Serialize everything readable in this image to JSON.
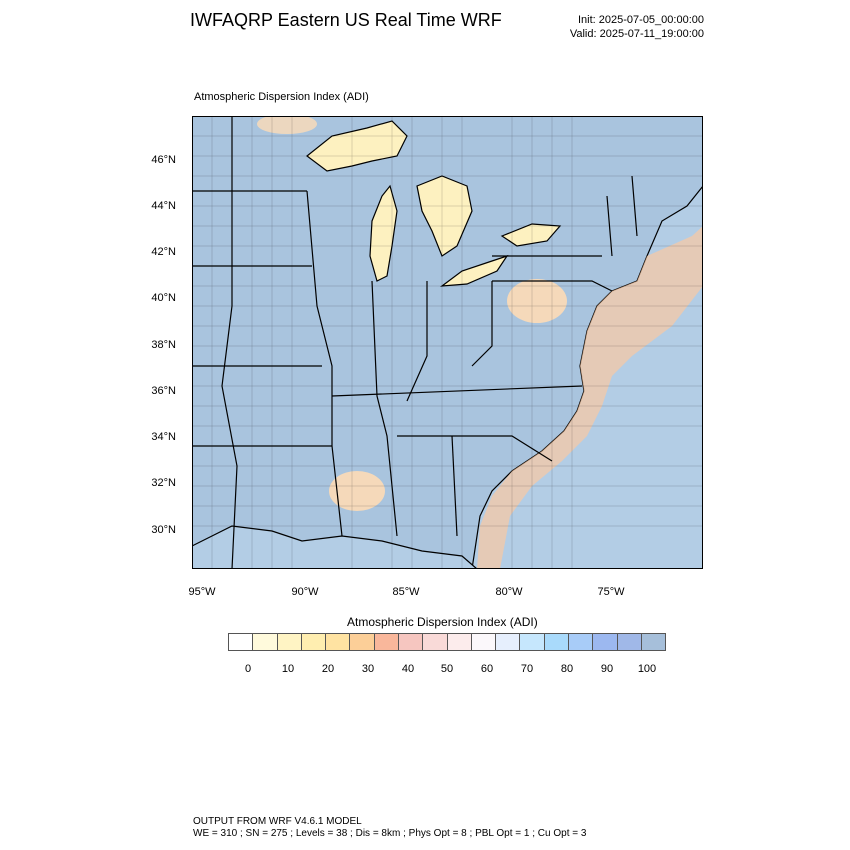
{
  "header": {
    "title": "IWFAQRP Eastern US Real Time WRF",
    "init": "Init: 2025-07-05_00:00:00",
    "valid": "Valid: 2025-07-11_19:00:00"
  },
  "map": {
    "field_title": "Atmospheric Dispersion Index   (ADI)",
    "lat_labels": [
      "46°N",
      "44°N",
      "42°N",
      "40°N",
      "38°N",
      "36°N",
      "34°N",
      "32°N",
      "30°N"
    ],
    "lon_labels": [
      "95°W",
      "90°W",
      "85°W",
      "80°W",
      "75°W"
    ],
    "colors": {
      "land_dominant": "#a9c4de",
      "ocean": "#b3cde5",
      "lake": "#fdf1c0",
      "low_adi_warm": "#fddcb6",
      "coastal_band": "#fbc9a2",
      "boundaries": "#000000"
    }
  },
  "colorbar": {
    "title": "Atmospheric Dispersion Index  (ADI)",
    "colors": [
      "#ffffff",
      "#fffadc",
      "#fff4c4",
      "#ffeeb0",
      "#ffe3a2",
      "#fccf98",
      "#f9b79b",
      "#f6c6c0",
      "#f9dad8",
      "#fcecec",
      "#fbf8fb",
      "#e6effd",
      "#c6e7fd",
      "#a9dafb",
      "#a8ccf8",
      "#9cb8f0",
      "#a0b8e8",
      "#a6bfda"
    ],
    "tick_labels": [
      "0",
      "10",
      "20",
      "30",
      "40",
      "50",
      "60",
      "70",
      "80",
      "90",
      "100"
    ]
  },
  "footer": {
    "line1": "OUTPUT FROM WRF V4.6.1 MODEL",
    "line2": "WE = 310 ; SN = 275 ; Levels = 38 ; Dis = 8km ; Phys Opt = 8 ; PBL Opt = 1 ; Cu Opt = 3"
  }
}
